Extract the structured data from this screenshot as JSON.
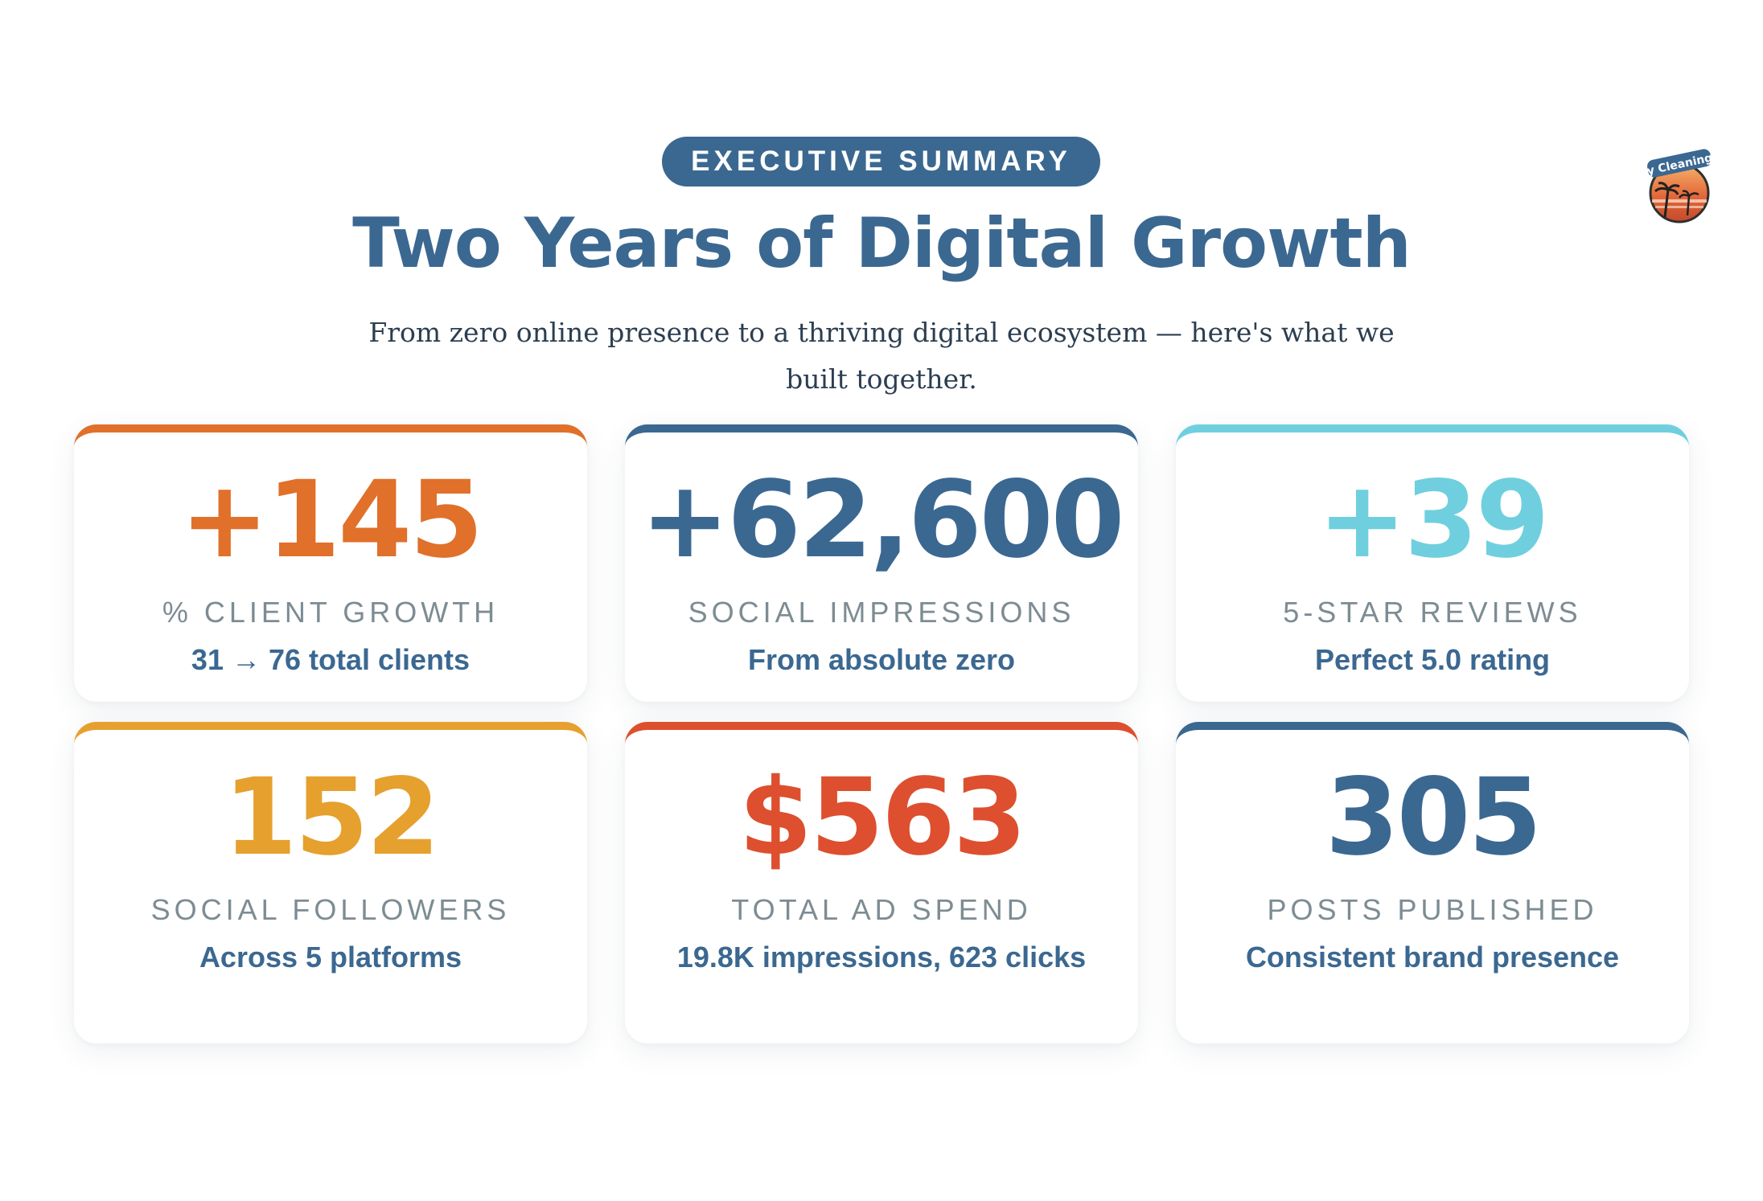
{
  "header": {
    "badge": "EXECUTIVE SUMMARY",
    "title": "Two Years of Digital Growth",
    "subtitle": "From zero online presence to a thriving digital ecosystem — here's what we built together."
  },
  "logo": {
    "icon": "palm-sunset-logo-icon",
    "text": "Palm Bay Cleaning Service"
  },
  "stats": [
    {
      "value": "+145",
      "label": "% CLIENT GROWTH",
      "detail": "31 → 76 total clients",
      "color": "#e0702a"
    },
    {
      "value": "+62,600",
      "label": "SOCIAL IMPRESSIONS",
      "detail": "From absolute zero",
      "color": "#3b6891"
    },
    {
      "value": "+39",
      "label": "5-STAR REVIEWS",
      "detail": "Perfect 5.0 rating",
      "color": "#6fcfdf"
    },
    {
      "value": "152",
      "label": "SOCIAL FOLLOWERS",
      "detail": "Across 5 platforms",
      "color": "#e6a02e"
    },
    {
      "value": "$563",
      "label": "TOTAL AD SPEND",
      "detail": "19.8K impressions, 623 clicks",
      "color": "#dd4f2e"
    },
    {
      "value": "305",
      "label": "POSTS PUBLISHED",
      "detail": "Consistent brand presence",
      "color": "#3b6891"
    }
  ]
}
